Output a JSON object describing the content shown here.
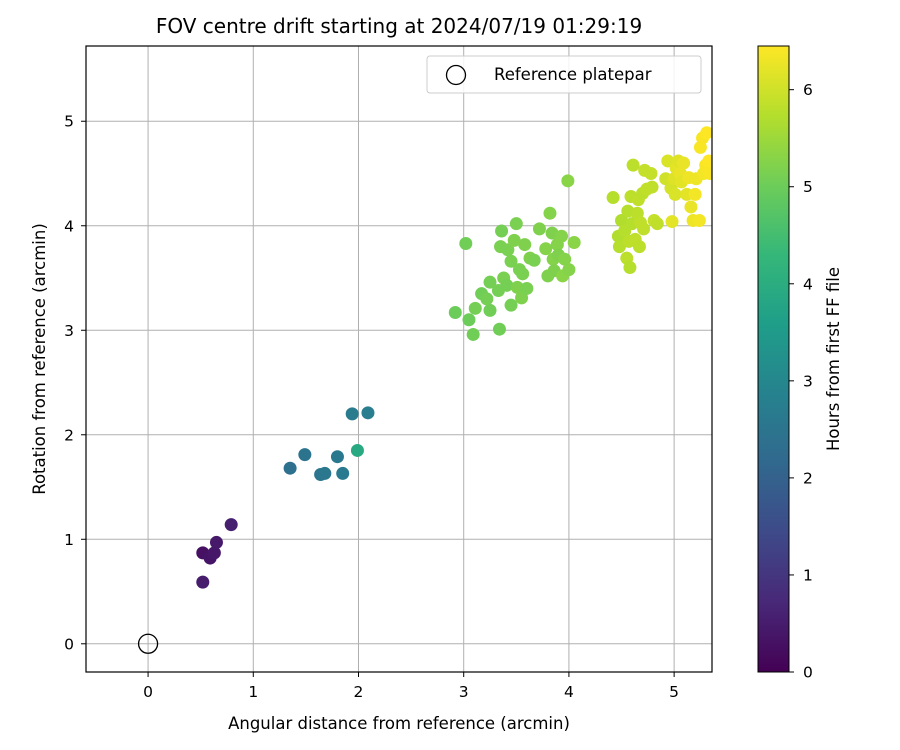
{
  "chart_data": {
    "type": "scatter",
    "title": "FOV centre drift starting at 2024/07/19 01:29:19",
    "xlabel": "Angular distance from reference (arcmin)",
    "ylabel": "Rotation from reference (arcmin)",
    "xlim": [
      -0.59,
      5.36
    ],
    "ylim": [
      -0.27,
      5.72
    ],
    "xticks": [
      "0",
      "1",
      "2",
      "3",
      "4",
      "5"
    ],
    "yticks": [
      "0",
      "1",
      "2",
      "3",
      "4",
      "5"
    ],
    "grid": true,
    "legend": {
      "placement": "top-right",
      "entries": [
        "Reference platepar"
      ]
    },
    "reference_point": {
      "name": "Reference platepar",
      "x": 0,
      "y": 0
    },
    "colorbar": {
      "label": "Hours from first FF file",
      "range": [
        0,
        6.45
      ],
      "ticks": [
        "0",
        "1",
        "2",
        "3",
        "4",
        "5",
        "6"
      ],
      "colormap": "viridis"
    },
    "points": [
      {
        "x": 0.52,
        "y": 0.87,
        "h": 0.3
      },
      {
        "x": 0.59,
        "y": 0.82,
        "h": 0.35
      },
      {
        "x": 0.63,
        "y": 0.87,
        "h": 0.4
      },
      {
        "x": 0.65,
        "y": 0.97,
        "h": 0.45
      },
      {
        "x": 0.52,
        "y": 0.59,
        "h": 0.5
      },
      {
        "x": 0.79,
        "y": 1.14,
        "h": 0.55
      },
      {
        "x": 1.35,
        "y": 1.68,
        "h": 2.4
      },
      {
        "x": 1.49,
        "y": 1.81,
        "h": 2.45
      },
      {
        "x": 1.64,
        "y": 1.62,
        "h": 2.5
      },
      {
        "x": 1.68,
        "y": 1.63,
        "h": 2.55
      },
      {
        "x": 1.8,
        "y": 1.79,
        "h": 2.6
      },
      {
        "x": 1.85,
        "y": 1.63,
        "h": 2.65
      },
      {
        "x": 1.94,
        "y": 2.2,
        "h": 2.7
      },
      {
        "x": 2.09,
        "y": 2.21,
        "h": 2.75
      },
      {
        "x": 1.99,
        "y": 1.85,
        "h": 3.9
      },
      {
        "x": 2.92,
        "y": 3.17,
        "h": 5.0
      },
      {
        "x": 3.02,
        "y": 3.83,
        "h": 5.05
      },
      {
        "x": 3.05,
        "y": 3.1,
        "h": 5.0
      },
      {
        "x": 3.09,
        "y": 2.96,
        "h": 5.05
      },
      {
        "x": 3.11,
        "y": 3.21,
        "h": 5.1
      },
      {
        "x": 3.17,
        "y": 3.35,
        "h": 5.05
      },
      {
        "x": 3.22,
        "y": 3.3,
        "h": 5.1
      },
      {
        "x": 3.25,
        "y": 3.19,
        "h": 5.05
      },
      {
        "x": 3.25,
        "y": 3.46,
        "h": 5.1
      },
      {
        "x": 3.34,
        "y": 3.01,
        "h": 5.05
      },
      {
        "x": 3.33,
        "y": 3.38,
        "h": 5.1
      },
      {
        "x": 3.35,
        "y": 3.8,
        "h": 5.15
      },
      {
        "x": 3.36,
        "y": 3.95,
        "h": 5.1
      },
      {
        "x": 3.38,
        "y": 3.5,
        "h": 5.15
      },
      {
        "x": 3.41,
        "y": 3.43,
        "h": 5.1
      },
      {
        "x": 3.42,
        "y": 3.77,
        "h": 5.15
      },
      {
        "x": 3.45,
        "y": 3.24,
        "h": 5.1
      },
      {
        "x": 3.45,
        "y": 3.66,
        "h": 5.15
      },
      {
        "x": 3.48,
        "y": 3.86,
        "h": 5.2
      },
      {
        "x": 3.5,
        "y": 4.02,
        "h": 5.15
      },
      {
        "x": 3.51,
        "y": 3.41,
        "h": 5.2
      },
      {
        "x": 3.53,
        "y": 3.58,
        "h": 5.15
      },
      {
        "x": 3.55,
        "y": 3.31,
        "h": 5.2
      },
      {
        "x": 3.56,
        "y": 3.54,
        "h": 5.15
      },
      {
        "x": 3.58,
        "y": 3.82,
        "h": 5.2
      },
      {
        "x": 3.6,
        "y": 3.4,
        "h": 5.15
      },
      {
        "x": 3.63,
        "y": 3.69,
        "h": 5.2
      },
      {
        "x": 3.67,
        "y": 3.67,
        "h": 5.15
      },
      {
        "x": 3.72,
        "y": 3.97,
        "h": 5.2
      },
      {
        "x": 3.78,
        "y": 3.78,
        "h": 5.25
      },
      {
        "x": 3.8,
        "y": 3.52,
        "h": 5.2
      },
      {
        "x": 3.82,
        "y": 4.12,
        "h": 5.25
      },
      {
        "x": 3.84,
        "y": 3.93,
        "h": 5.2
      },
      {
        "x": 3.85,
        "y": 3.68,
        "h": 5.25
      },
      {
        "x": 3.86,
        "y": 3.57,
        "h": 5.2
      },
      {
        "x": 3.89,
        "y": 3.82,
        "h": 5.25
      },
      {
        "x": 3.9,
        "y": 3.72,
        "h": 5.2
      },
      {
        "x": 3.93,
        "y": 3.9,
        "h": 5.25
      },
      {
        "x": 3.94,
        "y": 3.52,
        "h": 5.3
      },
      {
        "x": 3.96,
        "y": 3.68,
        "h": 5.25
      },
      {
        "x": 3.99,
        "y": 4.43,
        "h": 5.3
      },
      {
        "x": 4.0,
        "y": 3.58,
        "h": 5.25
      },
      {
        "x": 4.05,
        "y": 3.84,
        "h": 5.3
      },
      {
        "x": 4.42,
        "y": 4.27,
        "h": 5.75
      },
      {
        "x": 4.47,
        "y": 3.9,
        "h": 5.7
      },
      {
        "x": 4.48,
        "y": 3.8,
        "h": 5.75
      },
      {
        "x": 4.5,
        "y": 4.05,
        "h": 5.7
      },
      {
        "x": 4.53,
        "y": 3.95,
        "h": 5.75
      },
      {
        "x": 4.55,
        "y": 3.69,
        "h": 5.8
      },
      {
        "x": 4.56,
        "y": 4.14,
        "h": 5.75
      },
      {
        "x": 4.57,
        "y": 3.85,
        "h": 5.8
      },
      {
        "x": 4.58,
        "y": 3.6,
        "h": 5.75
      },
      {
        "x": 4.59,
        "y": 4.28,
        "h": 5.8
      },
      {
        "x": 4.6,
        "y": 4.02,
        "h": 5.75
      },
      {
        "x": 4.61,
        "y": 4.58,
        "h": 5.8
      },
      {
        "x": 4.63,
        "y": 3.87,
        "h": 5.85
      },
      {
        "x": 4.65,
        "y": 4.12,
        "h": 5.8
      },
      {
        "x": 4.66,
        "y": 4.25,
        "h": 5.85
      },
      {
        "x": 4.67,
        "y": 3.8,
        "h": 5.8
      },
      {
        "x": 4.68,
        "y": 4.03,
        "h": 5.85
      },
      {
        "x": 4.7,
        "y": 4.31,
        "h": 5.8
      },
      {
        "x": 4.71,
        "y": 3.97,
        "h": 5.85
      },
      {
        "x": 4.72,
        "y": 4.53,
        "h": 5.9
      },
      {
        "x": 4.74,
        "y": 4.35,
        "h": 5.85
      },
      {
        "x": 4.78,
        "y": 4.5,
        "h": 5.9
      },
      {
        "x": 4.79,
        "y": 4.37,
        "h": 5.85
      },
      {
        "x": 4.81,
        "y": 4.05,
        "h": 5.9
      },
      {
        "x": 4.84,
        "y": 4.02,
        "h": 5.85
      },
      {
        "x": 4.92,
        "y": 4.45,
        "h": 6.0
      },
      {
        "x": 4.94,
        "y": 4.62,
        "h": 6.1
      },
      {
        "x": 4.97,
        "y": 4.36,
        "h": 6.05
      },
      {
        "x": 4.98,
        "y": 4.04,
        "h": 6.2
      },
      {
        "x": 5.0,
        "y": 4.45,
        "h": 6.15
      },
      {
        "x": 5.01,
        "y": 4.3,
        "h": 6.1
      },
      {
        "x": 5.02,
        "y": 4.55,
        "h": 6.2
      },
      {
        "x": 5.04,
        "y": 4.62,
        "h": 6.15
      },
      {
        "x": 5.06,
        "y": 4.5,
        "h": 6.25
      },
      {
        "x": 5.07,
        "y": 4.42,
        "h": 6.2
      },
      {
        "x": 5.09,
        "y": 4.6,
        "h": 6.25
      },
      {
        "x": 5.12,
        "y": 4.3,
        "h": 6.2
      },
      {
        "x": 5.14,
        "y": 4.46,
        "h": 6.3
      },
      {
        "x": 5.16,
        "y": 4.18,
        "h": 6.25
      },
      {
        "x": 5.18,
        "y": 4.05,
        "h": 6.3
      },
      {
        "x": 5.2,
        "y": 4.3,
        "h": 6.35
      },
      {
        "x": 5.21,
        "y": 4.45,
        "h": 6.3
      },
      {
        "x": 5.24,
        "y": 4.05,
        "h": 6.35
      },
      {
        "x": 5.25,
        "y": 4.75,
        "h": 6.4
      },
      {
        "x": 5.27,
        "y": 4.84,
        "h": 6.4
      },
      {
        "x": 5.28,
        "y": 4.5,
        "h": 6.35
      },
      {
        "x": 5.3,
        "y": 4.58,
        "h": 6.4
      },
      {
        "x": 5.31,
        "y": 4.89,
        "h": 6.45
      },
      {
        "x": 5.33,
        "y": 4.62,
        "h": 6.45
      },
      {
        "x": 5.34,
        "y": 4.5,
        "h": 6.4
      }
    ]
  }
}
